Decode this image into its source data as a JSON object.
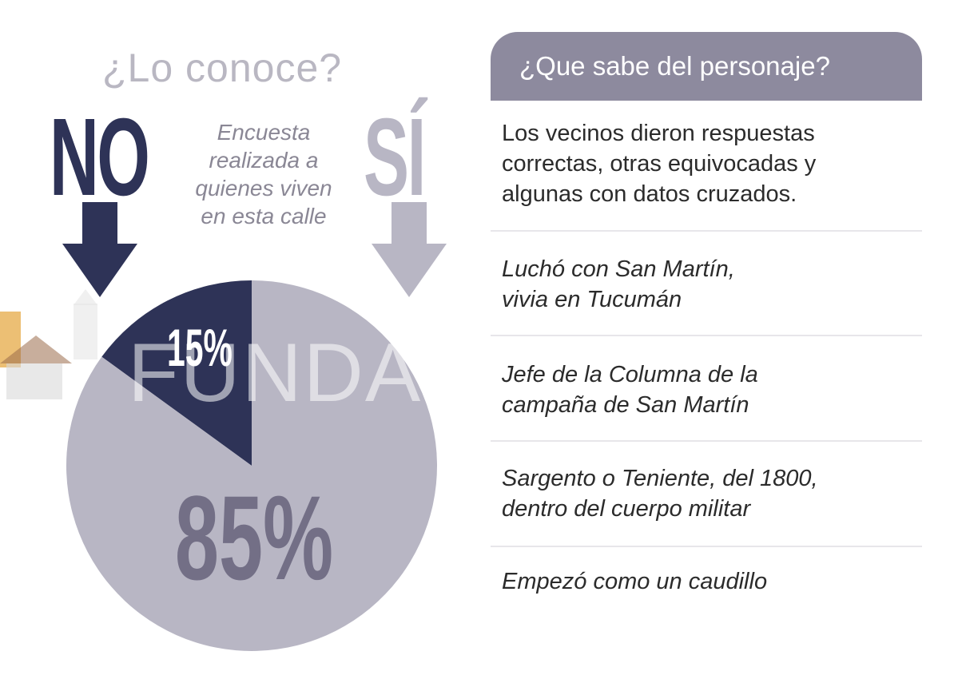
{
  "left_title": "¿Lo conoce?",
  "no_label": "NO",
  "si_label": "SÍ",
  "survey_note_lines": [
    "Encuesta",
    "realizada a",
    "quienes viven",
    "en esta calle"
  ],
  "watermark": "FUNDAC",
  "colors": {
    "no": "#2e3357",
    "si": "#b8b6c4",
    "si_label": "#736f86",
    "header_bg": "#8d8a9e"
  },
  "chart_data": {
    "type": "pie",
    "title": "¿Lo conoce?",
    "slices": [
      {
        "name": "NO",
        "value": 15,
        "label": "15%"
      },
      {
        "name": "SÍ",
        "value": 85,
        "label": "85%"
      }
    ]
  },
  "right_panel": {
    "header": "¿Que sabe del personaje?",
    "answers": [
      {
        "lines": [
          "Los vecinos dieron respuestas",
          "correctas, otras equivocadas y",
          "algunas con datos cruzados."
        ],
        "italic": false
      },
      {
        "lines": [
          "Luchó con San Martín,",
          "vivia en Tucumán"
        ],
        "italic": true
      },
      {
        "lines": [
          "Jefe de la Columna de la",
          "campaña de San Martín"
        ],
        "italic": true
      },
      {
        "lines": [
          "Sargento o Teniente, del 1800,",
          "dentro del cuerpo militar"
        ],
        "italic": true
      },
      {
        "lines": [
          "Empezó como un caudillo"
        ],
        "italic": true
      }
    ]
  }
}
